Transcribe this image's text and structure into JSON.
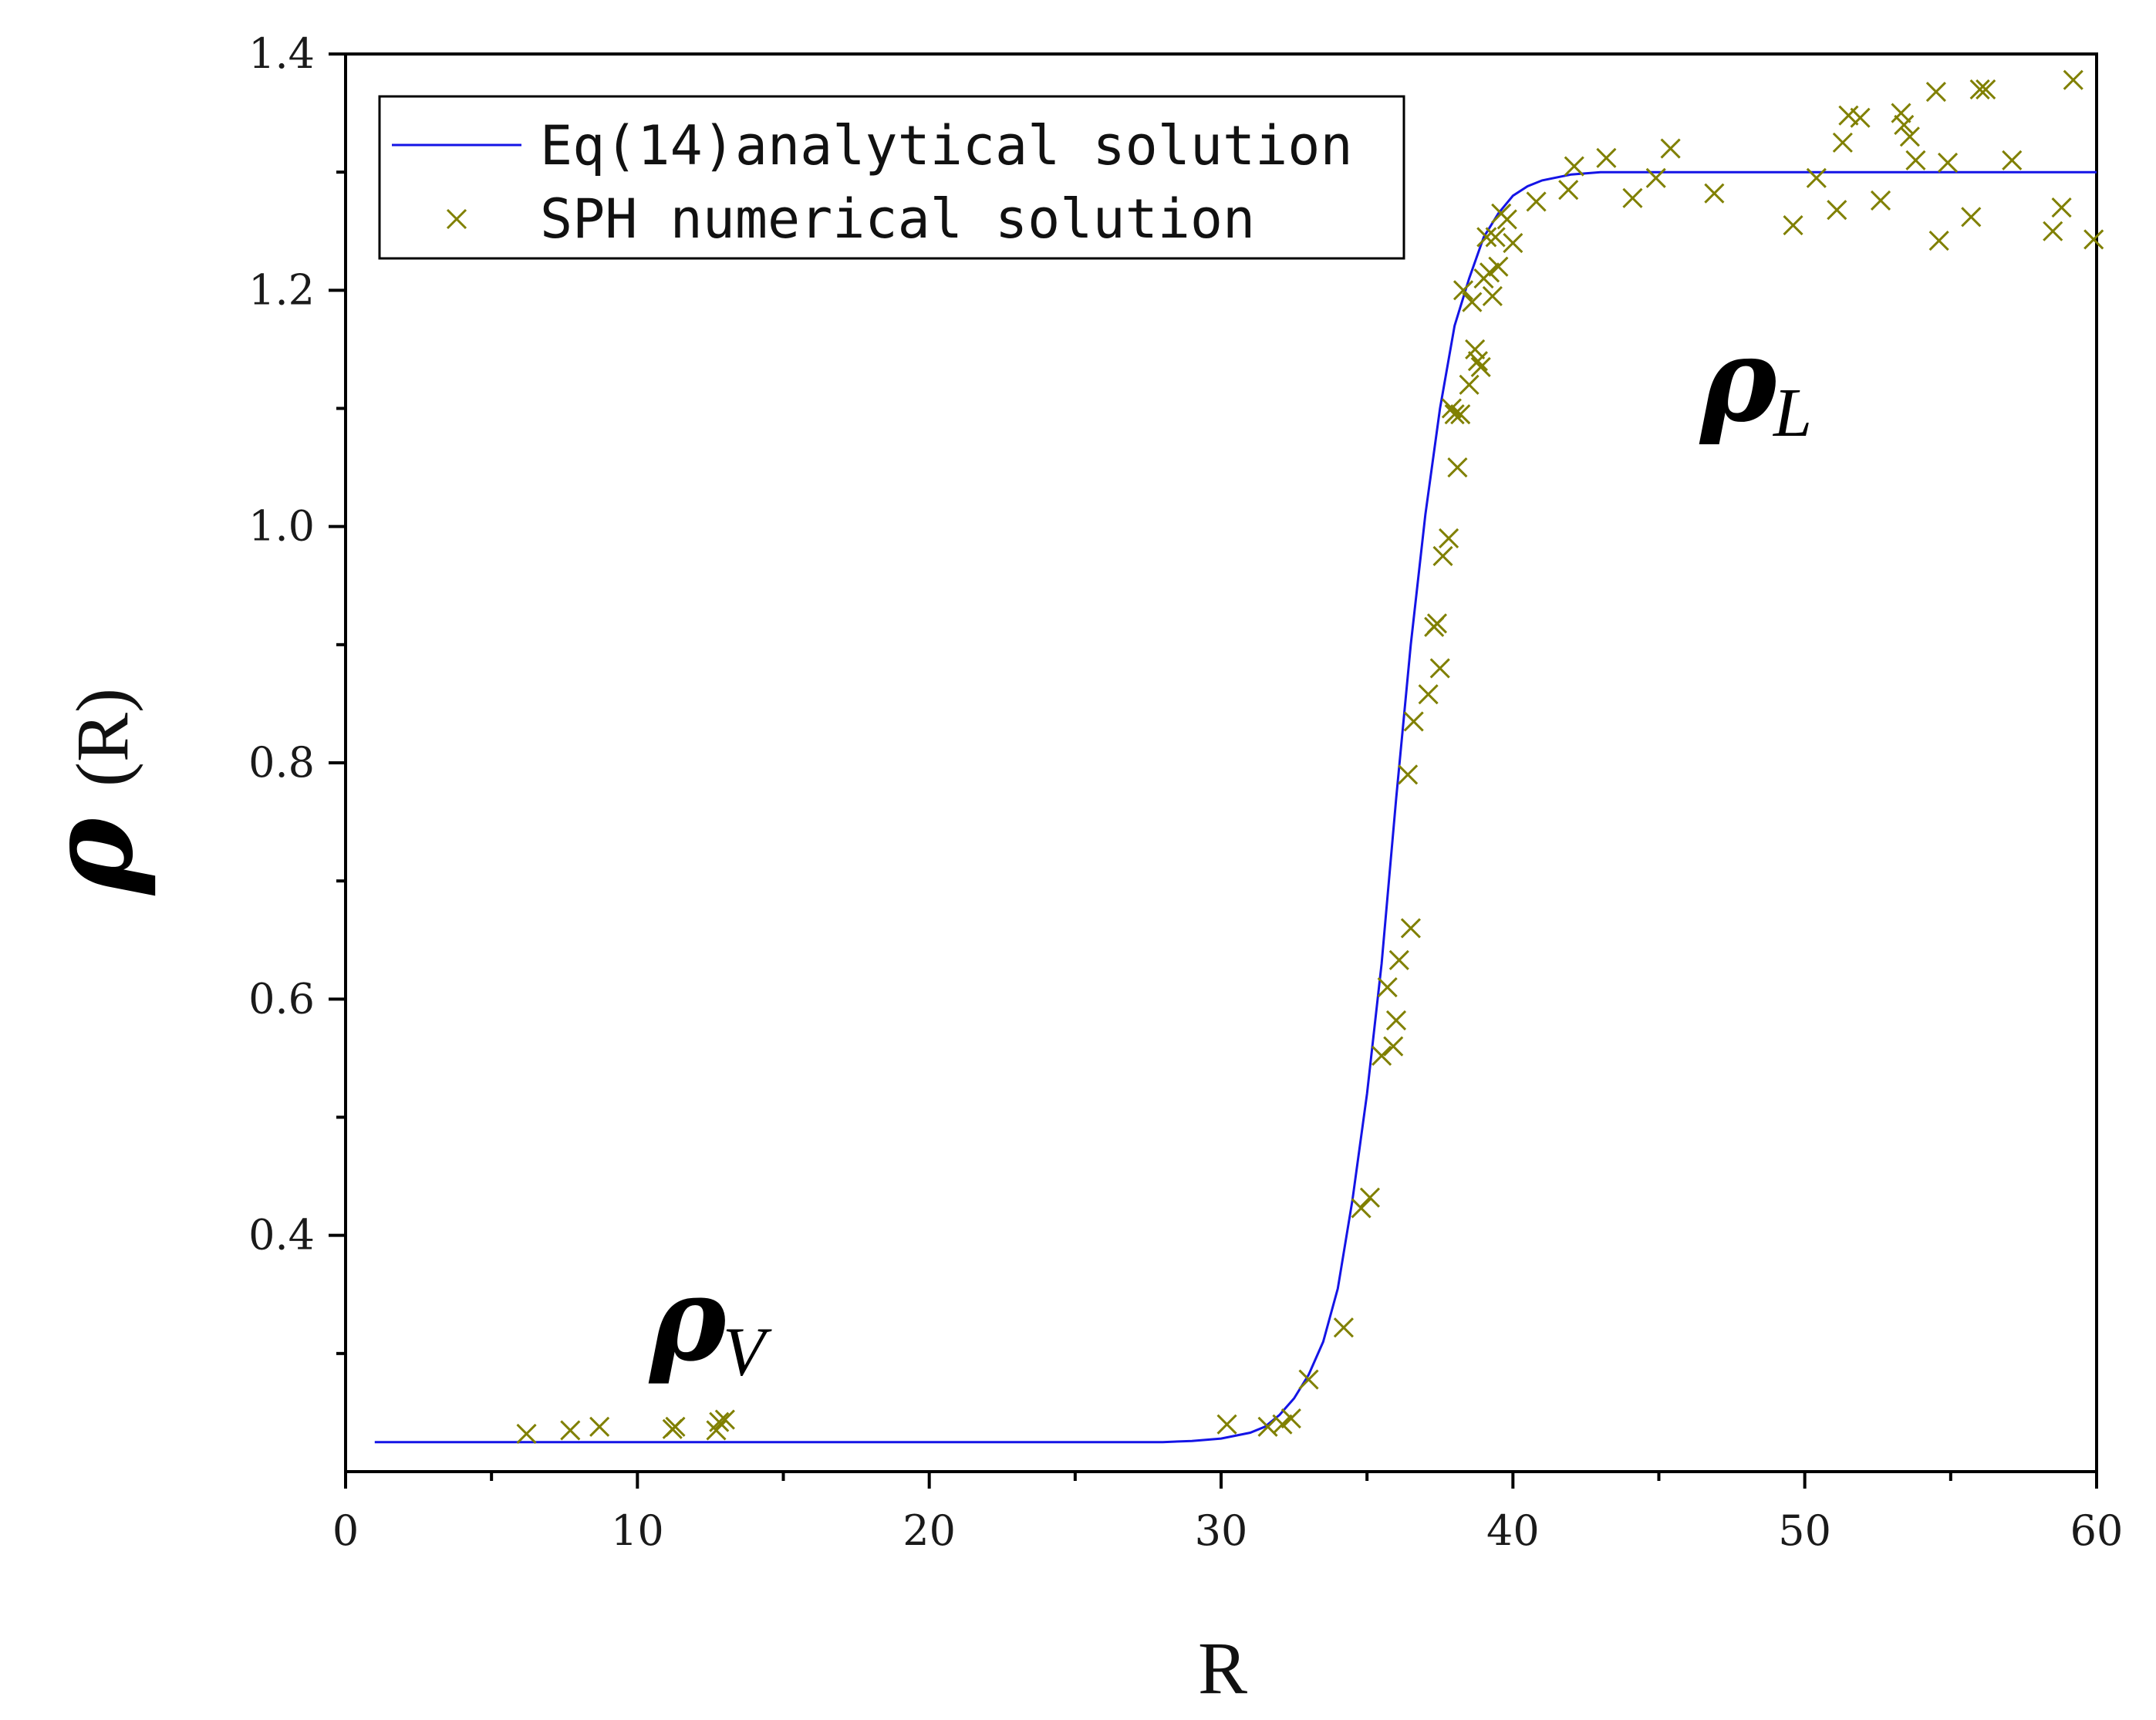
{
  "chart_data": {
    "type": "line+scatter",
    "xlabel": "R",
    "ylabel_symbol": "ρ",
    "ylabel_paren": "(R)",
    "xlim": [
      0,
      60
    ],
    "ylim": [
      0.2,
      1.4
    ],
    "x_ticks": [
      "0",
      "10",
      "20",
      "30",
      "40",
      "50",
      "60"
    ],
    "y_ticks": [
      "0.4",
      "0.6",
      "0.8",
      "1.0",
      "1.2",
      "1.4"
    ],
    "grid": false,
    "legend_position": "top-left",
    "annotations": [
      {
        "symbol": "ρ",
        "subscript": "V",
        "x": 12,
        "y": 0.295
      },
      {
        "symbol": "ρ",
        "subscript": "L",
        "x": 48,
        "y": 1.09
      }
    ],
    "series": [
      {
        "name": "Eq(14)analytical solution",
        "kind": "line",
        "color": "#1414e6",
        "x": [
          1,
          5,
          10,
          15,
          20,
          25,
          28,
          29,
          30,
          31,
          31.5,
          32,
          32.5,
          33,
          33.5,
          34,
          34.5,
          35,
          35.5,
          36,
          36.5,
          37,
          37.5,
          38,
          38.5,
          39,
          39.5,
          40,
          40.5,
          41,
          42,
          43,
          45,
          50,
          55,
          60
        ],
        "y": [
          0.225,
          0.225,
          0.225,
          0.225,
          0.225,
          0.225,
          0.225,
          0.226,
          0.228,
          0.233,
          0.238,
          0.248,
          0.262,
          0.282,
          0.31,
          0.355,
          0.43,
          0.52,
          0.63,
          0.77,
          0.9,
          1.01,
          1.1,
          1.17,
          1.21,
          1.245,
          1.265,
          1.28,
          1.288,
          1.293,
          1.298,
          1.3,
          1.3,
          1.3,
          1.3,
          1.3
        ]
      },
      {
        "name": "SPH numerical solution",
        "kind": "scatter",
        "color": "#808000",
        "x": [
          6.2,
          7.7,
          8.7,
          11.2,
          11.3,
          12.7,
          12.8,
          13.0,
          30.2,
          31.6,
          32.1,
          32.4,
          33.0,
          34.2,
          34.8,
          35.1,
          35.5,
          35.7,
          35.9,
          36.0,
          36.1,
          36.4,
          36.5,
          36.6,
          37.1,
          37.3,
          37.4,
          37.5,
          37.6,
          37.8,
          37.9,
          38.0,
          38.1,
          38.2,
          38.3,
          38.5,
          38.6,
          38.7,
          38.8,
          38.9,
          39.0,
          39.1,
          39.2,
          39.3,
          39.4,
          39.5,
          39.6,
          39.8,
          40.0,
          40.8,
          41.9,
          42.1,
          43.2,
          44.1,
          44.9,
          45.4,
          46.9,
          49.6,
          50.4,
          51.1,
          51.3,
          51.5,
          51.9,
          52.6,
          53.3,
          53.4,
          53.6,
          53.8,
          54.5,
          54.6,
          54.9,
          55.7,
          56.0,
          56.2,
          57.1,
          58.5,
          58.8,
          59.2,
          59.9
        ],
        "y": [
          0.232,
          0.235,
          0.238,
          0.236,
          0.238,
          0.235,
          0.242,
          0.244,
          0.24,
          0.238,
          0.24,
          0.245,
          0.278,
          0.322,
          0.423,
          0.432,
          0.552,
          0.61,
          0.56,
          0.582,
          0.633,
          0.79,
          0.66,
          0.835,
          0.858,
          0.915,
          0.918,
          0.88,
          0.975,
          0.99,
          1.1,
          1.095,
          1.05,
          1.095,
          1.2,
          1.12,
          1.19,
          1.15,
          1.14,
          1.135,
          1.21,
          1.245,
          1.215,
          1.195,
          1.245,
          1.22,
          1.265,
          1.26,
          1.24,
          1.275,
          1.285,
          1.305,
          1.312,
          1.278,
          1.295,
          1.32,
          1.282,
          1.255,
          1.295,
          1.268,
          1.325,
          1.348,
          1.346,
          1.276,
          1.35,
          1.34,
          1.33,
          1.31,
          1.368,
          1.242,
          1.308,
          1.262,
          1.37,
          1.37,
          1.31,
          1.25,
          1.27,
          1.378,
          1.243
        ]
      }
    ]
  }
}
